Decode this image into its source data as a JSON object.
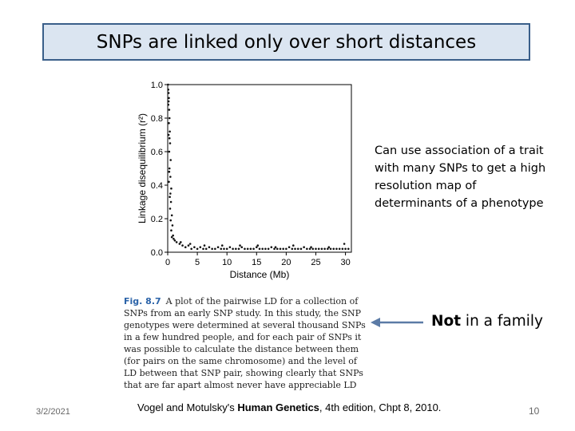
{
  "slide": {
    "title": "SNPs are linked only over short distances",
    "side_text": "Can use association of a trait with many SNPs to get a high resolution map of determinants of a phenotype",
    "not_bold": "Not",
    "not_rest": " in a family",
    "caption_fig": "Fig. 8.7",
    "caption_text": "A plot of the pairwise LD for a collection of SNPs from an early SNP study. In this study, the SNP genotypes were determined at several thousand SNPs in a few hundred people, and for each pair of SNPs it was possible to calculate the distance between them (for pairs on the same chromosome) and the level of LD between that SNP pair, showing clearly that SNPs that are far apart almost never have appreciable LD",
    "citation_pre": "Vogel and Motulsky's ",
    "citation_bold": "Human Genetics",
    "citation_post": ", 4th edition, Chpt 8, 2010.",
    "date": "3/2/2021",
    "page_number": "10"
  },
  "colors": {
    "title_bg": "#dbe5f1",
    "title_border": "#3a5f8a",
    "arrow": "#5b7ba6",
    "caption_fig": "#2b63a8"
  },
  "chart_data": {
    "type": "scatter",
    "title": "",
    "xlabel": "Distance (Mb)",
    "ylabel": "Linkage disequilibrium (r²)",
    "xlim": [
      0,
      31
    ],
    "ylim": [
      0,
      1.0
    ],
    "xticks": [
      0,
      5,
      10,
      15,
      20,
      25,
      30
    ],
    "yticks": [
      0.0,
      0.2,
      0.4,
      0.6,
      0.8,
      1.0
    ],
    "ytick_labels": [
      "0.0",
      "0.2",
      "0.4",
      "0.6",
      "0.8",
      "1.0"
    ],
    "grid": false,
    "points": [
      [
        0.05,
        1.0
      ],
      [
        0.1,
        0.97
      ],
      [
        0.15,
        0.95
      ],
      [
        0.2,
        0.92
      ],
      [
        0.1,
        0.88
      ],
      [
        0.25,
        0.85
      ],
      [
        0.3,
        0.8
      ],
      [
        0.2,
        0.77
      ],
      [
        0.35,
        0.72
      ],
      [
        0.15,
        0.7
      ],
      [
        0.4,
        0.65
      ],
      [
        0.25,
        0.6
      ],
      [
        0.5,
        0.55
      ],
      [
        0.3,
        0.5
      ],
      [
        0.45,
        0.45
      ],
      [
        0.2,
        0.42
      ],
      [
        0.6,
        0.38
      ],
      [
        0.35,
        0.33
      ],
      [
        0.55,
        0.3
      ],
      [
        0.4,
        0.26
      ],
      [
        0.7,
        0.22
      ],
      [
        0.5,
        0.19
      ],
      [
        0.8,
        0.16
      ],
      [
        0.6,
        0.13
      ],
      [
        0.9,
        0.1
      ],
      [
        1.0,
        0.08
      ],
      [
        0.15,
        0.9
      ],
      [
        0.3,
        0.68
      ],
      [
        0.25,
        0.48
      ],
      [
        0.45,
        0.35
      ],
      [
        1.2,
        0.07
      ],
      [
        1.5,
        0.06
      ],
      [
        2.0,
        0.05
      ],
      [
        2.5,
        0.04
      ],
      [
        3.0,
        0.03
      ],
      [
        3.5,
        0.04
      ],
      [
        4.0,
        0.02
      ],
      [
        4.5,
        0.03
      ],
      [
        5.0,
        0.02
      ],
      [
        5.5,
        0.03
      ],
      [
        6.0,
        0.02
      ],
      [
        6.5,
        0.02
      ],
      [
        7.0,
        0.03
      ],
      [
        7.5,
        0.02
      ],
      [
        8.0,
        0.02
      ],
      [
        8.5,
        0.03
      ],
      [
        9.0,
        0.02
      ],
      [
        9.5,
        0.02
      ],
      [
        10.0,
        0.02
      ],
      [
        10.5,
        0.03
      ],
      [
        11.0,
        0.02
      ],
      [
        11.5,
        0.02
      ],
      [
        12.0,
        0.02
      ],
      [
        12.5,
        0.03
      ],
      [
        13.0,
        0.02
      ],
      [
        13.5,
        0.02
      ],
      [
        14.0,
        0.02
      ],
      [
        14.5,
        0.02
      ],
      [
        15.0,
        0.03
      ],
      [
        15.5,
        0.02
      ],
      [
        16.0,
        0.02
      ],
      [
        16.5,
        0.02
      ],
      [
        17.0,
        0.02
      ],
      [
        17.5,
        0.03
      ],
      [
        18.0,
        0.02
      ],
      [
        18.5,
        0.02
      ],
      [
        19.0,
        0.02
      ],
      [
        19.5,
        0.02
      ],
      [
        20.0,
        0.02
      ],
      [
        20.5,
        0.03
      ],
      [
        21.0,
        0.02
      ],
      [
        21.5,
        0.02
      ],
      [
        22.0,
        0.02
      ],
      [
        22.5,
        0.02
      ],
      [
        23.0,
        0.03
      ],
      [
        23.5,
        0.02
      ],
      [
        24.0,
        0.02
      ],
      [
        24.5,
        0.02
      ],
      [
        25.0,
        0.02
      ],
      [
        25.5,
        0.02
      ],
      [
        26.0,
        0.02
      ],
      [
        26.5,
        0.02
      ],
      [
        27.0,
        0.02
      ],
      [
        27.5,
        0.02
      ],
      [
        28.0,
        0.02
      ],
      [
        28.5,
        0.02
      ],
      [
        29.0,
        0.02
      ],
      [
        29.5,
        0.02
      ],
      [
        30.0,
        0.02
      ],
      [
        30.5,
        0.02
      ],
      [
        0.7,
        0.09
      ],
      [
        2.2,
        0.06
      ],
      [
        3.8,
        0.05
      ],
      [
        6.2,
        0.04
      ],
      [
        9.2,
        0.04
      ],
      [
        12.2,
        0.04
      ],
      [
        15.2,
        0.04
      ],
      [
        18.2,
        0.03
      ],
      [
        21.2,
        0.04
      ],
      [
        24.2,
        0.03
      ],
      [
        27.2,
        0.03
      ],
      [
        29.8,
        0.05
      ]
    ]
  }
}
